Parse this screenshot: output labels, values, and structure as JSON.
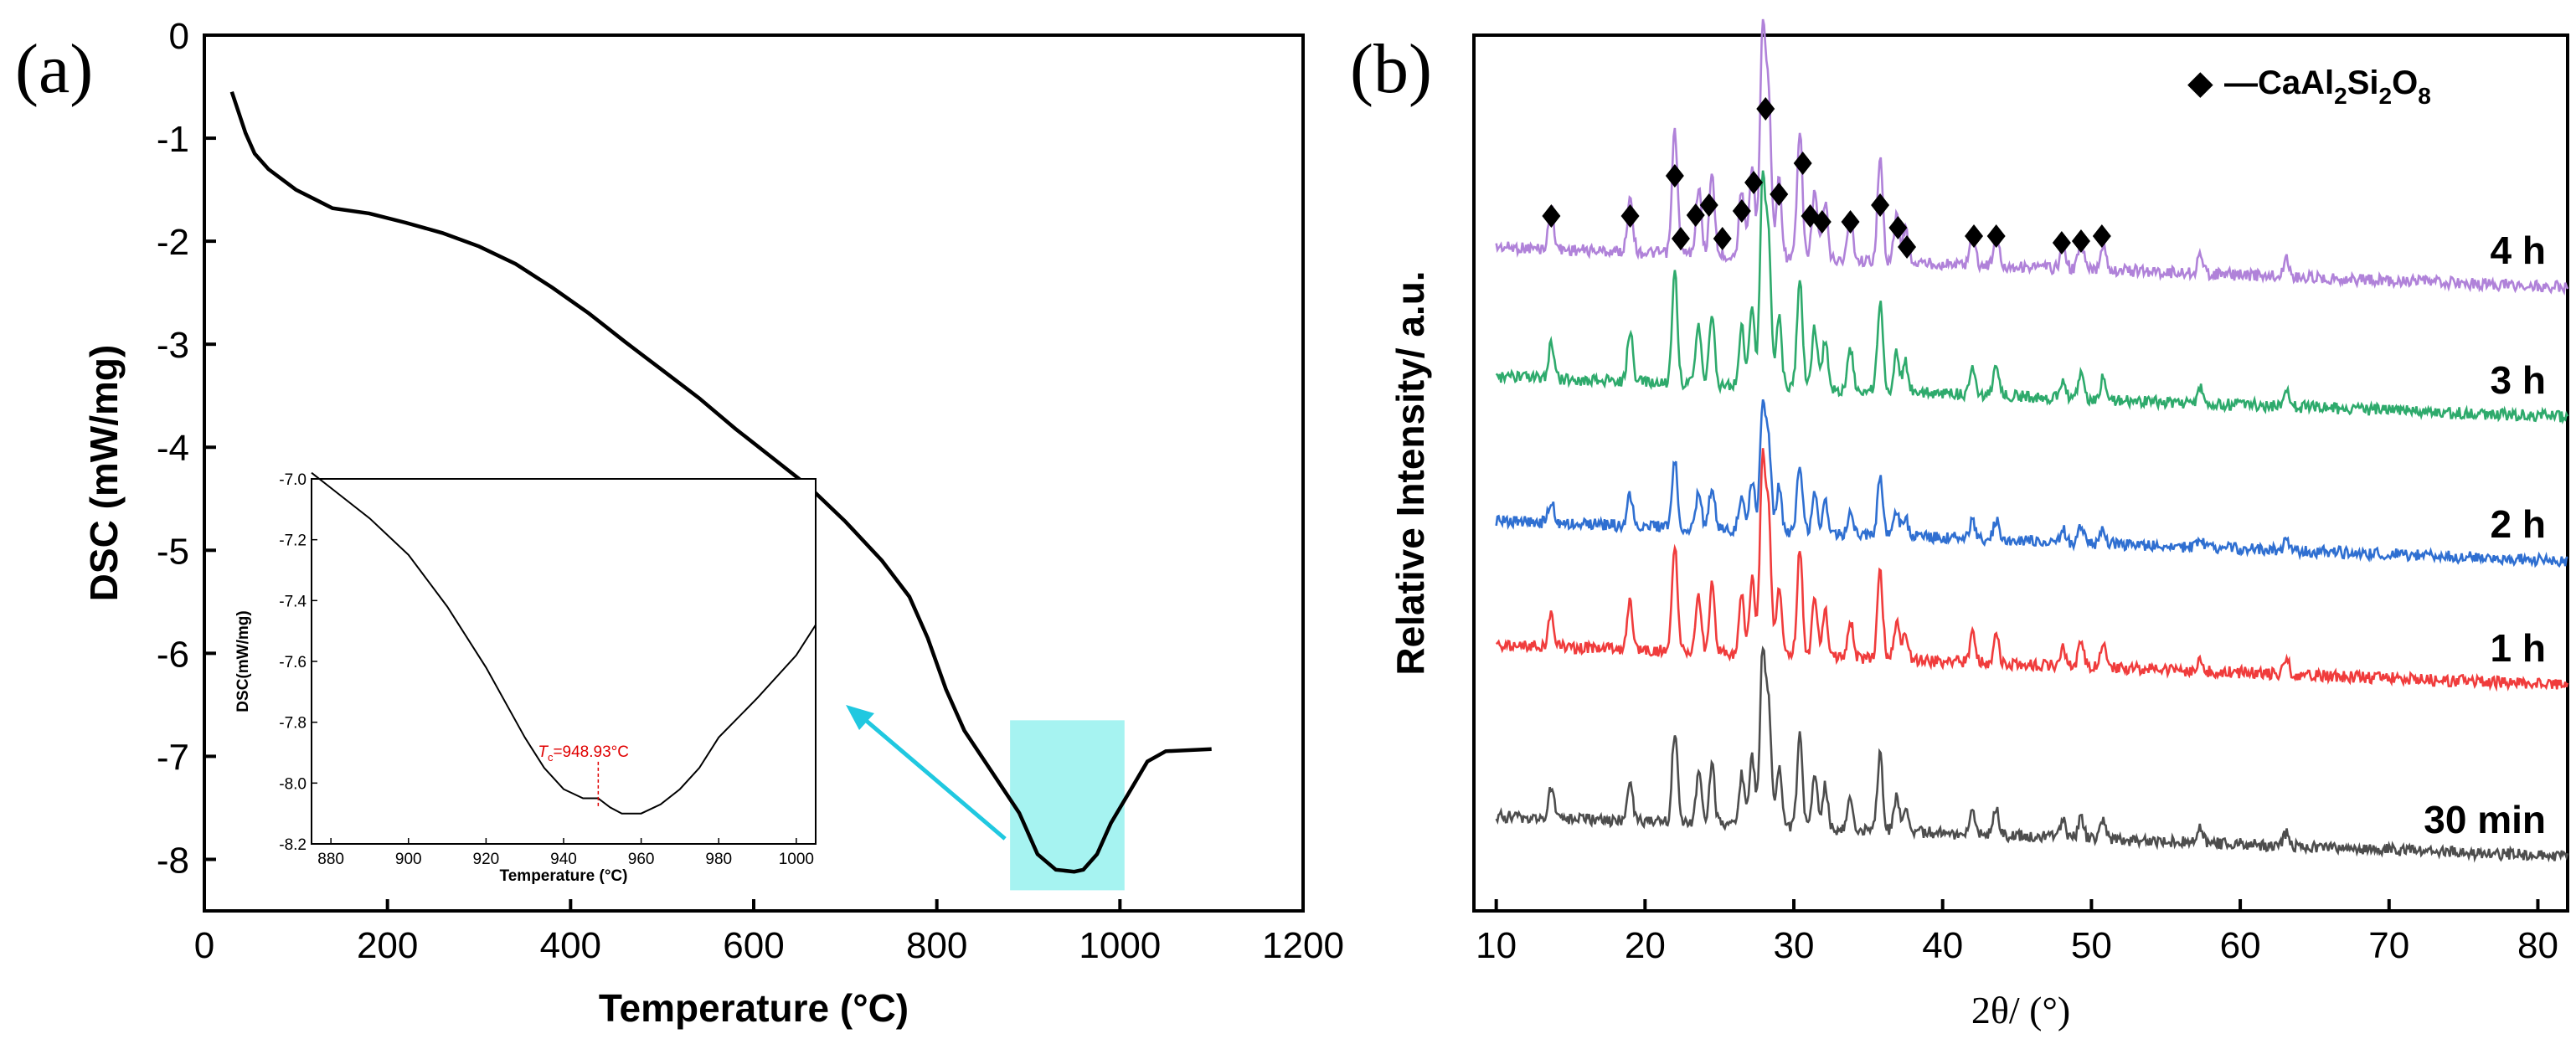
{
  "chart_data": [
    {
      "panel": "(a)",
      "type": "line",
      "xlabel": "Temperature (°C)",
      "ylabel": "DSC (mW/mg)",
      "xlim": [
        0,
        1200
      ],
      "ylim": [
        -8.5,
        0
      ],
      "xticks": [
        "0",
        "200",
        "400",
        "600",
        "800",
        "1000",
        "1200"
      ],
      "yticks": [
        "0",
        "-1",
        "-2",
        "-3",
        "-4",
        "-5",
        "-6",
        "-7",
        "-8"
      ],
      "series": [
        {
          "name": "DSC",
          "color": "#000000",
          "x": [
            30,
            45,
            55,
            70,
            100,
            140,
            180,
            220,
            260,
            300,
            340,
            380,
            420,
            460,
            500,
            540,
            580,
            620,
            660,
            700,
            740,
            770,
            790,
            810,
            830,
            860,
            890,
            910,
            930,
            950,
            960,
            975,
            990,
            1010,
            1030,
            1050,
            1100
          ],
          "y": [
            -0.55,
            -0.95,
            -1.15,
            -1.3,
            -1.5,
            -1.68,
            -1.73,
            -1.82,
            -1.92,
            -2.05,
            -2.22,
            -2.45,
            -2.7,
            -2.98,
            -3.25,
            -3.52,
            -3.82,
            -4.1,
            -4.38,
            -4.72,
            -5.1,
            -5.45,
            -5.85,
            -6.35,
            -6.75,
            -7.15,
            -7.55,
            -7.95,
            -8.1,
            -8.12,
            -8.1,
            -7.95,
            -7.65,
            -7.35,
            -7.05,
            -6.95,
            -6.93
          ]
        }
      ],
      "highlight_region": {
        "x": [
          880,
          1005
        ],
        "y": [
          -8.3,
          -6.65
        ],
        "color": "#a6f3f1"
      },
      "arrow_color": "#20c8e0",
      "inset": {
        "xlabel": "Temperature (°C)",
        "ylabel": "DSC(mW/mg)",
        "xlim": [
          875,
          1005
        ],
        "ylim": [
          -8.2,
          -7.0
        ],
        "xticks": [
          "880",
          "900",
          "920",
          "940",
          "960",
          "980",
          "1000"
        ],
        "yticks": [
          "-7.0",
          "-7.2",
          "-7.4",
          "-7.6",
          "-7.8",
          "-8.0",
          "-8.2"
        ],
        "x": [
          875,
          880,
          890,
          900,
          910,
          920,
          930,
          935,
          940,
          945,
          948.9,
          952,
          955,
          960,
          965,
          970,
          975,
          980,
          990,
          1000,
          1005
        ],
        "y": [
          -6.98,
          -7.03,
          -7.13,
          -7.25,
          -7.42,
          -7.62,
          -7.85,
          -7.95,
          -8.02,
          -8.05,
          -8.05,
          -8.08,
          -8.1,
          -8.1,
          -8.07,
          -8.02,
          -7.95,
          -7.85,
          -7.72,
          -7.58,
          -7.48
        ],
        "annotation": {
          "label_T": "T",
          "label_sub": "c",
          "label_value": "=948.93°C",
          "x": 948.93,
          "color": "#e00000"
        }
      }
    },
    {
      "panel": "(b)",
      "type": "line",
      "xlabel_theta": "2θ/ (°)",
      "ylabel": "Relative Intensity/ a.u.",
      "xlim": [
        8.5,
        82
      ],
      "xticks": [
        "10",
        "20",
        "30",
        "40",
        "50",
        "60",
        "70",
        "80"
      ],
      "legend": {
        "marker": "◆",
        "text": "—CaAl",
        "sub1": "2",
        "text2": "Si",
        "sub2": "2",
        "text3": "O",
        "sub3": "8"
      },
      "peaks": [
        13.7,
        19.0,
        22.0,
        23.6,
        24.5,
        26.5,
        27.2,
        27.9,
        28.3,
        29.0,
        30.4,
        31.4,
        32.1,
        33.8,
        35.8,
        36.9,
        37.5,
        42.0,
        43.6,
        48.1,
        49.3,
        50.8,
        57.3,
        63.1
      ],
      "peak_heights": [
        0.18,
        0.25,
        0.55,
        0.3,
        0.35,
        0.3,
        0.4,
        1.0,
        0.7,
        0.35,
        0.55,
        0.3,
        0.25,
        0.2,
        0.45,
        0.2,
        0.15,
        0.15,
        0.15,
        0.1,
        0.12,
        0.12,
        0.08,
        0.08
      ],
      "markers_2theta": [
        13.7,
        19.0,
        22.0,
        22.4,
        23.4,
        24.3,
        25.2,
        26.5,
        27.3,
        28.1,
        29.0,
        30.6,
        31.1,
        31.9,
        33.8,
        35.8,
        37.0,
        37.6,
        42.1,
        43.6,
        48.0,
        49.3,
        50.7
      ],
      "series": [
        {
          "name": "4 h",
          "color": "#b082d9",
          "offset": 4,
          "scale": 1.0
        },
        {
          "name": "3 h",
          "color": "#2eaa6c",
          "offset": 3,
          "scale": 0.9
        },
        {
          "name": "2 h",
          "color": "#2f6fd1",
          "offset": 2,
          "scale": 0.55
        },
        {
          "name": "1 h",
          "color": "#f03c3c",
          "offset": 1,
          "scale": 0.85
        },
        {
          "name": "30 min",
          "color": "#4d4d4d",
          "offset": 0,
          "scale": 0.75
        }
      ]
    }
  ],
  "panel_labels": {
    "a": "(a)",
    "b": "(b)"
  }
}
